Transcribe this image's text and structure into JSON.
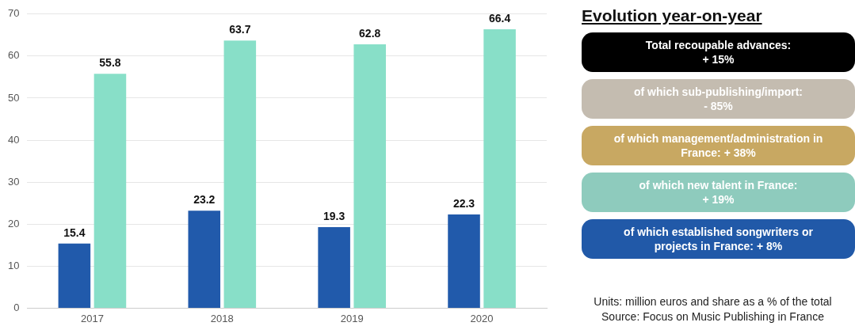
{
  "chart_data": [
    {
      "type": "bar",
      "categories": [
        "2017",
        "2018",
        "2019",
        "2020"
      ],
      "series": [
        {
          "color": "#215aab",
          "values": [
            15.4,
            23.2,
            19.3,
            22.3
          ]
        },
        {
          "color": "#88dfc8",
          "values": [
            55.8,
            63.7,
            62.8,
            66.4
          ]
        }
      ],
      "ylim": [
        0,
        70
      ],
      "yticks": [
        0,
        10,
        20,
        30,
        40,
        50,
        60,
        70
      ],
      "grid": "y",
      "data_labels": true,
      "annotations": [
        "Units: million euros and share as a % of the total",
        "Source: Focus on Music Publishing in France"
      ]
    },
    {
      "type": "other",
      "title": "Evolution year-on-year",
      "annotations": [
        "Total recoupable advances:\n+ 15%",
        "of which sub-publishing/import:\n- 85%",
        "of which management/administration in\nFrance: + 38%",
        "of which new talent in France:\n+ 19%",
        "of which established songwriters or\nprojects in France: + 8%"
      ]
    }
  ]
}
